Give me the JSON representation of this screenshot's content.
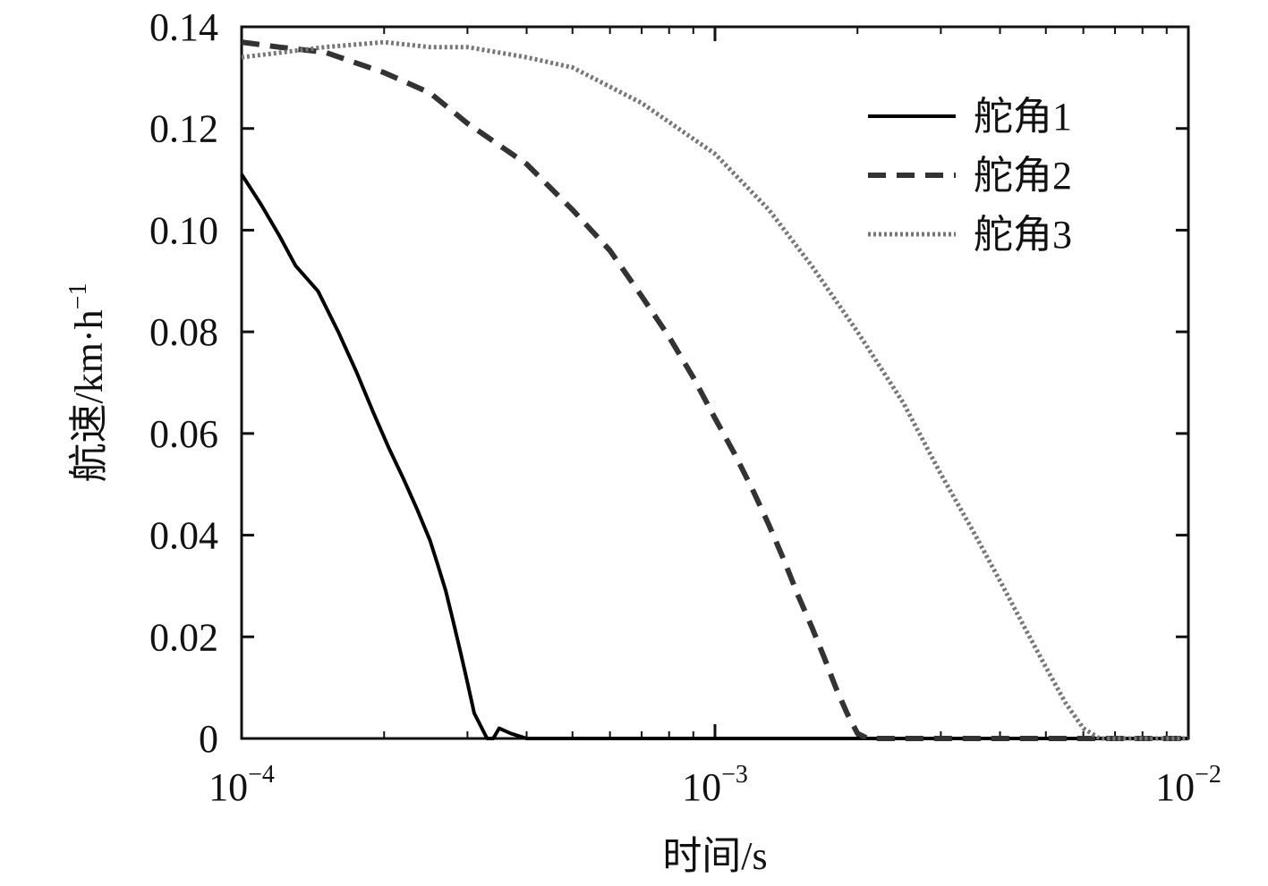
{
  "chart_data": {
    "type": "line",
    "title": "",
    "xlabel": "时间/s",
    "ylabel": "航速/km·h",
    "ylabel_exponent": "−1",
    "x_scale": "log",
    "xlim": [
      0.0001,
      0.01
    ],
    "ylim": [
      0,
      0.14
    ],
    "grid": false,
    "legend_position": "top-right",
    "x_ticks": [
      {
        "value": 0.0001,
        "base": "10",
        "exponent": "−4"
      },
      {
        "value": 0.001,
        "base": "10",
        "exponent": "−3"
      },
      {
        "value": 0.01,
        "base": "10",
        "exponent": "−2"
      }
    ],
    "y_ticks": [
      {
        "value": 0,
        "label": "0"
      },
      {
        "value": 0.02,
        "label": "0.02"
      },
      {
        "value": 0.04,
        "label": "0.04"
      },
      {
        "value": 0.06,
        "label": "0.06"
      },
      {
        "value": 0.08,
        "label": "0.08"
      },
      {
        "value": 0.1,
        "label": "0.10"
      },
      {
        "value": 0.12,
        "label": "0.12"
      },
      {
        "value": 0.14,
        "label": "0.14"
      }
    ],
    "series": [
      {
        "name": "舵角1",
        "style": "solid",
        "color": "#000000",
        "x": [
          0.0001,
          0.00011,
          0.00012,
          0.00013,
          0.000145,
          0.00016,
          0.000175,
          0.00019,
          0.000205,
          0.00022,
          0.000235,
          0.00025,
          0.00026,
          0.00027,
          0.00028,
          0.00029,
          0.0003,
          0.00031,
          0.00033,
          0.00034,
          0.00035,
          0.00037,
          0.0004,
          0.0005,
          0.0007,
          0.001,
          0.002,
          0.005,
          0.01
        ],
        "y": [
          0.111,
          0.105,
          0.099,
          0.093,
          0.088,
          0.08,
          0.072,
          0.064,
          0.057,
          0.051,
          0.045,
          0.039,
          0.034,
          0.029,
          0.023,
          0.017,
          0.011,
          0.005,
          0.0,
          0.0,
          0.002,
          0.001,
          0.0,
          0.0,
          0.0,
          0.0,
          0.0,
          0.0,
          0.0
        ]
      },
      {
        "name": "舵角2",
        "style": "dashed",
        "color": "#333333",
        "x": [
          0.0001,
          0.00012,
          0.00015,
          0.0002,
          0.00025,
          0.0003,
          0.0004,
          0.0005,
          0.0006,
          0.0007,
          0.0008,
          0.0009,
          0.001,
          0.0011,
          0.0012,
          0.0013,
          0.0014,
          0.0015,
          0.0016,
          0.0017,
          0.0018,
          0.0019,
          0.002,
          0.0021,
          0.003,
          0.005,
          0.01
        ],
        "y": [
          0.137,
          0.136,
          0.135,
          0.131,
          0.127,
          0.121,
          0.113,
          0.104,
          0.096,
          0.087,
          0.079,
          0.071,
          0.063,
          0.056,
          0.049,
          0.042,
          0.035,
          0.028,
          0.022,
          0.016,
          0.01,
          0.005,
          0.001,
          0.0,
          0.0,
          0.0,
          0.0
        ]
      },
      {
        "name": "舵角3",
        "style": "dotted",
        "color": "#777777",
        "x": [
          0.0001,
          0.00015,
          0.0002,
          0.00025,
          0.0003,
          0.0004,
          0.0005,
          0.0007,
          0.001,
          0.0013,
          0.0016,
          0.002,
          0.0025,
          0.003,
          0.0035,
          0.004,
          0.0045,
          0.005,
          0.0055,
          0.006,
          0.0065,
          0.007,
          0.008,
          0.01
        ],
        "y": [
          0.134,
          0.136,
          0.137,
          0.136,
          0.136,
          0.134,
          0.132,
          0.125,
          0.115,
          0.104,
          0.093,
          0.08,
          0.066,
          0.052,
          0.041,
          0.031,
          0.022,
          0.014,
          0.007,
          0.002,
          0.0,
          0.0,
          0.0,
          0.0
        ]
      }
    ]
  }
}
